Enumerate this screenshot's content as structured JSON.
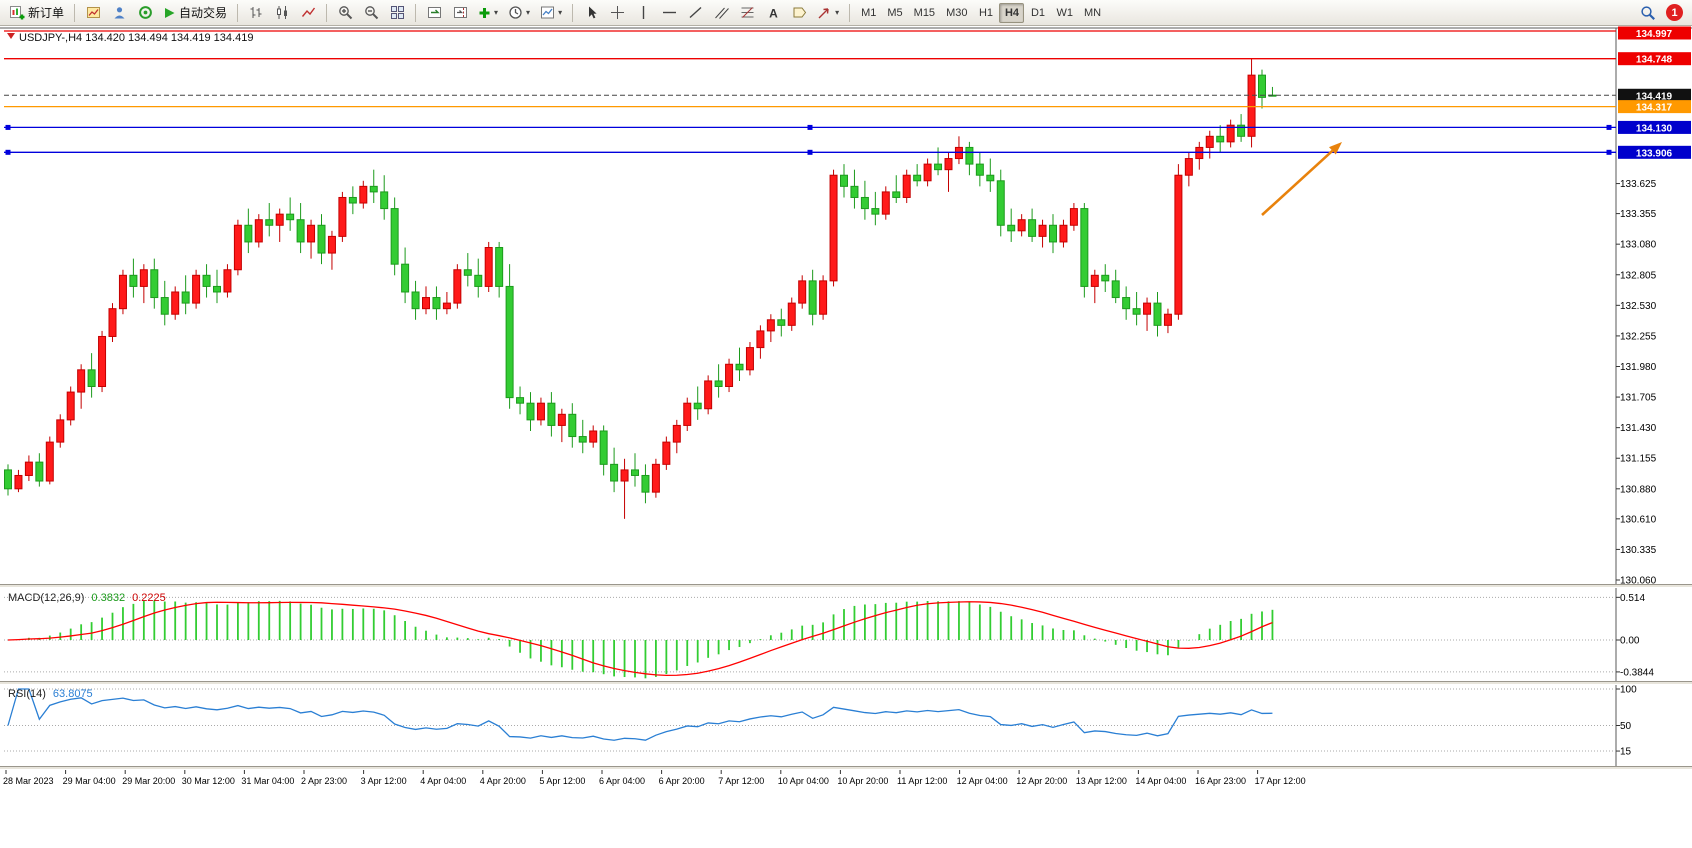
{
  "toolbar": {
    "new_order": "新订单",
    "auto_trading": "自动交易",
    "timeframes": [
      "M1",
      "M5",
      "M15",
      "M30",
      "H1",
      "H4",
      "D1",
      "W1",
      "MN"
    ],
    "active_timeframe": "H4",
    "notification_count": "1"
  },
  "chart": {
    "info": "USDJPY-,H4 134.420 134.494 134.419 134.419",
    "symbol": "USDJPY-",
    "period": "H4",
    "ohlc": {
      "open": "134.420",
      "high": "134.494",
      "low": "134.419",
      "close": "134.419"
    }
  },
  "chart_data": {
    "type": "candlestick",
    "title": "USDJPY-,H4",
    "colors": {
      "up": "#ff1a1a",
      "up_border": "#c40000",
      "down": "#33cc33",
      "down_border": "#1c9a1c",
      "macd_hist": "#32cd32",
      "macd_signal": "#ff0000",
      "rsi_line": "#2a7fd4",
      "arrow": "#e8820c",
      "level_red": "#ee0000",
      "level_orange": "#ff9900",
      "level_blue": "#0000cc",
      "current_price": "#111111"
    },
    "ylim": [
      130.06,
      134.997
    ],
    "y_ticks": [
      "133.625",
      "133.355",
      "133.080",
      "132.805",
      "132.530",
      "132.255",
      "131.980",
      "131.705",
      "131.430",
      "131.155",
      "130.880",
      "130.610",
      "130.335",
      "130.060"
    ],
    "price_levels": [
      {
        "label": "134.997",
        "value": 134.997,
        "color": "#ee0000",
        "box": "#ee0000",
        "style": "solid"
      },
      {
        "label": "134.748",
        "value": 134.748,
        "color": "#ee0000",
        "box": "#ee0000",
        "style": "solid"
      },
      {
        "label": "134.419",
        "value": 134.419,
        "color": "#444444",
        "box": "#111111",
        "style": "dash",
        "current": true
      },
      {
        "label": "134.317",
        "value": 134.317,
        "color": "#ff9900",
        "box": "#ff9900",
        "style": "solid"
      },
      {
        "label": "134.130",
        "value": 134.13,
        "color": "#0000dd",
        "box": "#0000cc",
        "style": "solid",
        "handles": true
      },
      {
        "label": "133.906",
        "value": 133.906,
        "color": "#0000dd",
        "box": "#0000cc",
        "style": "solid",
        "handles": true
      }
    ],
    "x_labels": [
      "28 Mar 2023",
      "29 Mar 04:00",
      "29 Mar 20:00",
      "30 Mar 12:00",
      "31 Mar 04:00",
      "2 Apr 23:00",
      "3 Apr 12:00",
      "4 Apr 04:00",
      "4 Apr 20:00",
      "5 Apr 12:00",
      "6 Apr 04:00",
      "6 Apr 20:00",
      "7 Apr 12:00",
      "10 Apr 04:00",
      "10 Apr 20:00",
      "11 Apr 12:00",
      "12 Apr 04:00",
      "12 Apr 20:00",
      "13 Apr 12:00",
      "14 Apr 04:00",
      "16 Apr 23:00",
      "17 Apr 12:00"
    ],
    "candles": [
      [
        131.05,
        131.1,
        130.82,
        130.88
      ],
      [
        130.88,
        131.05,
        130.85,
        131.0
      ],
      [
        131.0,
        131.18,
        130.95,
        131.12
      ],
      [
        131.12,
        131.2,
        130.9,
        130.95
      ],
      [
        130.95,
        131.35,
        130.92,
        131.3
      ],
      [
        131.3,
        131.55,
        131.25,
        131.5
      ],
      [
        131.5,
        131.8,
        131.45,
        131.75
      ],
      [
        131.75,
        132.0,
        131.6,
        131.95
      ],
      [
        131.95,
        132.1,
        131.7,
        131.8
      ],
      [
        131.8,
        132.3,
        131.75,
        132.25
      ],
      [
        132.25,
        132.55,
        132.2,
        132.5
      ],
      [
        132.5,
        132.85,
        132.45,
        132.8
      ],
      [
        132.8,
        132.95,
        132.6,
        132.7
      ],
      [
        132.7,
        132.9,
        132.55,
        132.85
      ],
      [
        132.85,
        132.95,
        132.5,
        132.6
      ],
      [
        132.6,
        132.75,
        132.35,
        132.45
      ],
      [
        132.45,
        132.7,
        132.4,
        132.65
      ],
      [
        132.65,
        132.8,
        132.45,
        132.55
      ],
      [
        132.55,
        132.85,
        132.5,
        132.8
      ],
      [
        132.8,
        132.9,
        132.6,
        132.7
      ],
      [
        132.7,
        132.85,
        132.55,
        132.65
      ],
      [
        132.65,
        132.9,
        132.6,
        132.85
      ],
      [
        132.85,
        133.3,
        132.8,
        133.25
      ],
      [
        133.25,
        133.4,
        133.0,
        133.1
      ],
      [
        133.1,
        133.35,
        133.05,
        133.3
      ],
      [
        133.3,
        133.45,
        133.15,
        133.25
      ],
      [
        133.25,
        133.4,
        133.1,
        133.35
      ],
      [
        133.35,
        133.5,
        133.2,
        133.3
      ],
      [
        133.3,
        133.45,
        133.0,
        133.1
      ],
      [
        133.1,
        133.3,
        132.95,
        133.25
      ],
      [
        133.25,
        133.35,
        132.9,
        133.0
      ],
      [
        133.0,
        133.2,
        132.85,
        133.15
      ],
      [
        133.15,
        133.55,
        133.1,
        133.5
      ],
      [
        133.5,
        133.6,
        133.35,
        133.45
      ],
      [
        133.45,
        133.65,
        133.4,
        133.6
      ],
      [
        133.6,
        133.75,
        133.45,
        133.55
      ],
      [
        133.55,
        133.7,
        133.3,
        133.4
      ],
      [
        133.4,
        133.5,
        132.8,
        132.9
      ],
      [
        132.9,
        133.05,
        132.55,
        132.65
      ],
      [
        132.65,
        132.75,
        132.4,
        132.5
      ],
      [
        132.5,
        132.7,
        132.45,
        132.6
      ],
      [
        132.6,
        132.7,
        132.4,
        132.5
      ],
      [
        132.5,
        132.65,
        132.45,
        132.55
      ],
      [
        132.55,
        132.9,
        132.5,
        132.85
      ],
      [
        132.85,
        133.0,
        132.7,
        132.8
      ],
      [
        132.8,
        132.95,
        132.6,
        132.7
      ],
      [
        132.7,
        133.1,
        132.65,
        133.05
      ],
      [
        133.05,
        133.1,
        132.6,
        132.7
      ],
      [
        132.7,
        132.9,
        131.6,
        131.7
      ],
      [
        131.7,
        131.8,
        131.55,
        131.65
      ],
      [
        131.65,
        131.75,
        131.4,
        131.5
      ],
      [
        131.5,
        131.7,
        131.45,
        131.65
      ],
      [
        131.65,
        131.75,
        131.35,
        131.45
      ],
      [
        131.45,
        131.6,
        131.3,
        131.55
      ],
      [
        131.55,
        131.65,
        131.25,
        131.35
      ],
      [
        131.35,
        131.5,
        131.2,
        131.3
      ],
      [
        131.3,
        131.45,
        131.25,
        131.4
      ],
      [
        131.4,
        131.45,
        131.0,
        131.1
      ],
      [
        131.1,
        131.25,
        130.85,
        130.95
      ],
      [
        130.95,
        131.15,
        130.61,
        131.05
      ],
      [
        131.05,
        131.2,
        130.9,
        131.0
      ],
      [
        131.0,
        131.1,
        130.75,
        130.85
      ],
      [
        130.85,
        131.15,
        130.8,
        131.1
      ],
      [
        131.1,
        131.35,
        131.05,
        131.3
      ],
      [
        131.3,
        131.5,
        131.2,
        131.45
      ],
      [
        131.45,
        131.7,
        131.4,
        131.65
      ],
      [
        131.65,
        131.8,
        131.5,
        131.6
      ],
      [
        131.6,
        131.9,
        131.55,
        131.85
      ],
      [
        131.85,
        132.0,
        131.7,
        131.8
      ],
      [
        131.8,
        132.05,
        131.75,
        132.0
      ],
      [
        132.0,
        132.15,
        131.85,
        131.95
      ],
      [
        131.95,
        132.2,
        131.9,
        132.15
      ],
      [
        132.15,
        132.35,
        132.05,
        132.3
      ],
      [
        132.3,
        132.45,
        132.2,
        132.4
      ],
      [
        132.4,
        132.5,
        132.25,
        132.35
      ],
      [
        132.35,
        132.6,
        132.3,
        132.55
      ],
      [
        132.55,
        132.8,
        132.5,
        132.75
      ],
      [
        132.75,
        132.85,
        132.35,
        132.45
      ],
      [
        132.45,
        132.8,
        132.4,
        132.75
      ],
      [
        132.75,
        133.75,
        132.7,
        133.7
      ],
      [
        133.7,
        133.8,
        133.5,
        133.6
      ],
      [
        133.6,
        133.75,
        133.4,
        133.5
      ],
      [
        133.5,
        133.65,
        133.3,
        133.4
      ],
      [
        133.4,
        133.55,
        133.25,
        133.35
      ],
      [
        133.35,
        133.6,
        133.3,
        133.55
      ],
      [
        133.55,
        133.7,
        133.45,
        133.5
      ],
      [
        133.5,
        133.75,
        133.45,
        133.7
      ],
      [
        133.7,
        133.8,
        133.6,
        133.65
      ],
      [
        133.65,
        133.85,
        133.6,
        133.8
      ],
      [
        133.8,
        133.95,
        133.7,
        133.75
      ],
      [
        133.75,
        133.9,
        133.55,
        133.85
      ],
      [
        133.85,
        134.05,
        133.8,
        133.95
      ],
      [
        133.95,
        134.0,
        133.7,
        133.8
      ],
      [
        133.8,
        133.9,
        133.6,
        133.7
      ],
      [
        133.7,
        133.85,
        133.55,
        133.65
      ],
      [
        133.65,
        133.75,
        133.15,
        133.25
      ],
      [
        133.25,
        133.4,
        133.1,
        133.2
      ],
      [
        133.2,
        133.35,
        133.15,
        133.3
      ],
      [
        133.3,
        133.4,
        133.1,
        133.15
      ],
      [
        133.15,
        133.3,
        133.05,
        133.25
      ],
      [
        133.25,
        133.35,
        133.0,
        133.1
      ],
      [
        133.1,
        133.3,
        133.05,
        133.25
      ],
      [
        133.25,
        133.45,
        133.2,
        133.4
      ],
      [
        133.4,
        133.45,
        132.6,
        132.7
      ],
      [
        132.7,
        132.85,
        132.55,
        132.8
      ],
      [
        132.8,
        132.9,
        132.65,
        132.75
      ],
      [
        132.75,
        132.85,
        132.55,
        132.6
      ],
      [
        132.6,
        132.7,
        132.4,
        132.5
      ],
      [
        132.5,
        132.65,
        132.35,
        132.45
      ],
      [
        132.45,
        132.6,
        132.3,
        132.55
      ],
      [
        132.55,
        132.65,
        132.25,
        132.35
      ],
      [
        132.35,
        132.5,
        132.28,
        132.45
      ],
      [
        132.45,
        133.8,
        132.4,
        133.7
      ],
      [
        133.7,
        133.9,
        133.6,
        133.85
      ],
      [
        133.85,
        134.0,
        133.75,
        133.95
      ],
      [
        133.95,
        134.1,
        133.85,
        134.05
      ],
      [
        134.05,
        134.15,
        133.9,
        134.0
      ],
      [
        134.0,
        134.2,
        133.95,
        134.15
      ],
      [
        134.15,
        134.25,
        134.0,
        134.05
      ],
      [
        134.05,
        134.75,
        133.95,
        134.6
      ],
      [
        134.6,
        134.65,
        134.3,
        134.4
      ],
      [
        134.42,
        134.494,
        134.419,
        134.419
      ]
    ],
    "indicators": [
      {
        "type": "macd-histogram",
        "label": "MACD(12,26,9)",
        "params": [
          12,
          26,
          9
        ],
        "values": {
          "main": "0.3832",
          "signal": "0.2225"
        },
        "y_ticks": [
          {
            "label": "0.514",
            "value": 0.514
          },
          {
            "label": "0.00",
            "value": 0
          },
          {
            "label": "-0.3844",
            "value": -0.3844
          }
        ]
      },
      {
        "type": "rsi-line",
        "label": "RSI(14)",
        "params": [
          14
        ],
        "value": "63.8075",
        "y_ticks": [
          {
            "label": "100",
            "value": 100
          },
          {
            "label": "50",
            "value": 50
          },
          {
            "label": "15",
            "value": 15
          }
        ]
      }
    ],
    "annotation": {
      "type": "arrow",
      "direction": "up-right",
      "color": "#e8820c"
    }
  }
}
